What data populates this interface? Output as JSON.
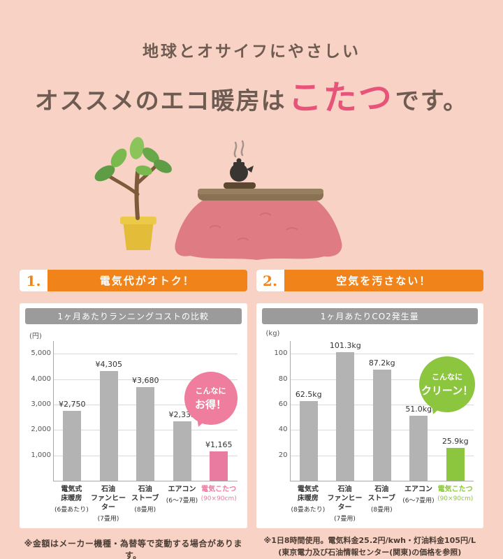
{
  "title": {
    "line1": "地球とオサイフにやさしい",
    "line2_prefix": "オススメのエコ暖房は",
    "line2_highlight": "こたつ",
    "line2_suffix": "です。"
  },
  "sections": [
    {
      "number": "1.",
      "label": "電気代がオトク！"
    },
    {
      "number": "2.",
      "label": "空気を汚さない！"
    }
  ],
  "footnotes": {
    "left": "※金額はメーカー機種・為替等で変動する場合があります。",
    "right_line1": "※1日8時間使用。電気料金25.2円/kwh・灯油料金105円/L",
    "right_line2": "(東京電力及び石油情報センター(関東)の価格を参照)"
  },
  "colors": {
    "background": "#f8d2c4",
    "accent_orange": "#f08319",
    "title_pink": "#e75379",
    "bar_gray": "#b3b3b3",
    "highlight_pink": "#ea7ba0",
    "highlight_green": "#8cc63f",
    "chart_header_gray": "#9b9b9b"
  },
  "illustration": {
    "plant": "potted-plant",
    "kotatsu": "kotatsu-with-teapot"
  },
  "chart_data": [
    {
      "type": "bar",
      "title": "1ヶ月あたりランニングコストの比較",
      "unit": "(円)",
      "ylim": [
        0,
        5500
      ],
      "yticks": [
        1000,
        2000,
        3000,
        4000,
        5000
      ],
      "ytick_labels": [
        "1,000",
        "2,000",
        "3,000",
        "4,000",
        "5,000"
      ],
      "categories": [
        "電気式\n床暖房",
        "石油\nファンヒーター",
        "石油\nストーブ",
        "エアコン",
        "電気こたつ"
      ],
      "category_subs": [
        "(6畳あたり)",
        "(7畳用)",
        "(8畳用)",
        "(6〜7畳用)",
        "(90×90cm)"
      ],
      "values": [
        2750,
        4305,
        3680,
        2335,
        1165
      ],
      "value_labels": [
        "¥2,750",
        "¥4,305",
        "¥3,680",
        "¥2,335",
        "¥1,165"
      ],
      "bar_color": "#b3b3b3",
      "highlight_index": 4,
      "highlight_color": "#ea7ba0",
      "grid": true,
      "bubble": {
        "line1": "こんなに",
        "line2": "お得！",
        "color": "#ee7d9e"
      }
    },
    {
      "type": "bar",
      "title": "1ヶ月あたりCO2発生量",
      "unit": "(kg)",
      "ylim": [
        0,
        110
      ],
      "yticks": [
        20,
        40,
        60,
        80,
        100
      ],
      "ytick_labels": [
        "20",
        "40",
        "60",
        "80",
        "100"
      ],
      "categories": [
        "電気式\n床暖房",
        "石油\nファンヒーター",
        "石油\nストーブ",
        "エアコン",
        "電気こたつ"
      ],
      "category_subs": [
        "(8畳あたり)",
        "(7畳用)",
        "(8畳用)",
        "(6〜7畳用)",
        "(90×90cm)"
      ],
      "values": [
        62.5,
        101.3,
        87.2,
        51.0,
        25.9
      ],
      "value_labels": [
        "62.5kg",
        "101.3kg",
        "87.2kg",
        "51.0kg",
        "25.9kg"
      ],
      "bar_color": "#b3b3b3",
      "highlight_index": 4,
      "highlight_color": "#8cc63f",
      "grid": true,
      "bubble": {
        "line1": "こんなに",
        "line2": "クリーン！",
        "color": "#8cc63f"
      }
    }
  ]
}
